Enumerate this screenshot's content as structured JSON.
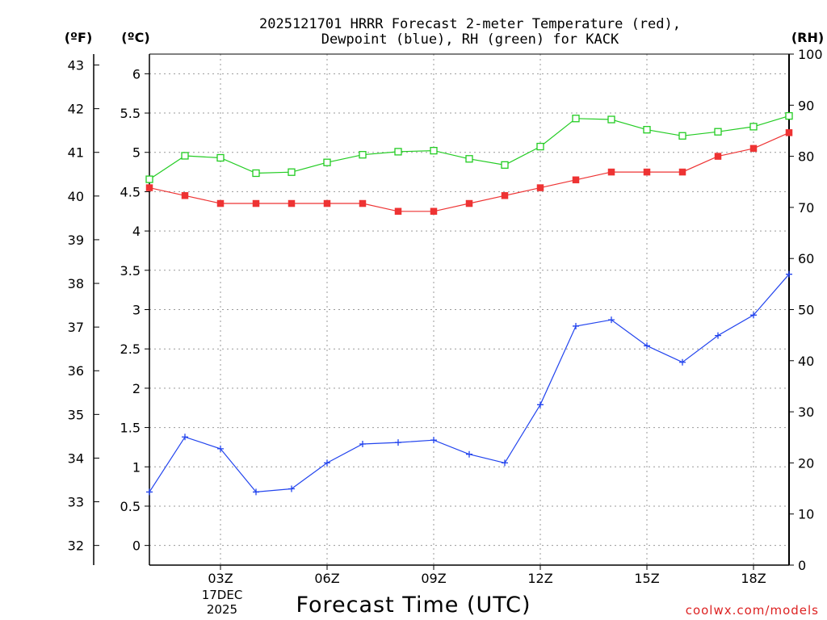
{
  "colors": {
    "temp": "#ee3333",
    "dewpoint": "#2244ee",
    "rh": "#22cc22",
    "grid": "#999999",
    "credit": "#dd2222"
  },
  "header": {
    "title_line1": "2025121701 HRRR Forecast 2-meter Temperature (red),",
    "title_line2": "Dewpoint (blue), RH (green) for KACK",
    "unit_f": "(ºF)",
    "unit_c": "(ºC)",
    "unit_rh": "(RH)"
  },
  "footer": {
    "xlabel": "Forecast Time (UTC)",
    "date_line1": "17DEC",
    "date_line2": "2025",
    "credit": "coolwx.com/models"
  },
  "chart_data": {
    "type": "line",
    "title": "2025121701 HRRR Forecast 2-meter Temperature (red), Dewpoint (blue), RH (green) for KACK",
    "xlabel": "Forecast Time (UTC)",
    "x_unit": "hour UTC, 17DEC 2025",
    "x": [
      1,
      2,
      3,
      4,
      5,
      6,
      7,
      8,
      9,
      10,
      11,
      12,
      13,
      14,
      15,
      16,
      17,
      18,
      19
    ],
    "xlim": [
      1,
      19
    ],
    "x_ticks": [
      {
        "x": 3,
        "label": "03Z"
      },
      {
        "x": 6,
        "label": "06Z"
      },
      {
        "x": 9,
        "label": "09Z"
      },
      {
        "x": 12,
        "label": "12Z"
      },
      {
        "x": 15,
        "label": "15Z"
      },
      {
        "x": 18,
        "label": "18Z"
      }
    ],
    "y_celsius": {
      "label": "(ºC)",
      "lim": [
        -0.25,
        6.25
      ],
      "ticks": [
        0,
        0.5,
        1,
        1.5,
        2,
        2.5,
        3,
        3.5,
        4,
        4.5,
        5,
        5.5,
        6
      ],
      "tick_labels": [
        "0",
        "0.5",
        "1",
        "1.5",
        "2",
        "2.5",
        "3",
        "3.5",
        "4",
        "4.5",
        "5",
        "5.5",
        "6"
      ]
    },
    "y_fahrenheit": {
      "label": "(ºF)",
      "ticks": [
        32,
        33,
        34,
        35,
        36,
        37,
        38,
        39,
        40,
        41,
        42,
        43
      ],
      "tick_labels": [
        "32",
        "33",
        "34",
        "35",
        "36",
        "37",
        "38",
        "39",
        "40",
        "41",
        "42",
        "43"
      ]
    },
    "y_rh": {
      "label": "(RH)",
      "lim": [
        0,
        100
      ],
      "ticks": [
        0,
        10,
        20,
        30,
        40,
        50,
        60,
        70,
        80,
        90,
        100
      ],
      "tick_labels": [
        "0",
        "10",
        "20",
        "30",
        "40",
        "50",
        "60",
        "70",
        "80",
        "90",
        "100"
      ]
    },
    "grid": true,
    "series": [
      {
        "name": "Temperature",
        "axis": "celsius",
        "color": "red",
        "marker": "filled-square",
        "values": [
          4.55,
          4.45,
          4.35,
          4.35,
          4.35,
          4.35,
          4.35,
          4.25,
          4.25,
          4.35,
          4.45,
          4.55,
          4.65,
          4.75,
          4.75,
          4.75,
          4.95,
          5.05,
          5.25
        ]
      },
      {
        "name": "Dewpoint",
        "axis": "celsius",
        "color": "blue",
        "marker": "plus",
        "values": [
          0.68,
          1.38,
          1.23,
          0.68,
          0.72,
          1.05,
          1.29,
          1.31,
          1.34,
          1.16,
          1.05,
          1.79,
          2.79,
          2.87,
          2.54,
          2.33,
          2.67,
          2.93,
          3.45
        ]
      },
      {
        "name": "RH",
        "axis": "rh",
        "color": "green",
        "marker": "open-square",
        "values": [
          75.5,
          80.1,
          79.7,
          76.7,
          76.9,
          78.8,
          80.3,
          80.9,
          81.1,
          79.5,
          78.3,
          81.9,
          87.4,
          87.2,
          85.2,
          84.0,
          84.8,
          85.8,
          87.9
        ]
      }
    ]
  }
}
